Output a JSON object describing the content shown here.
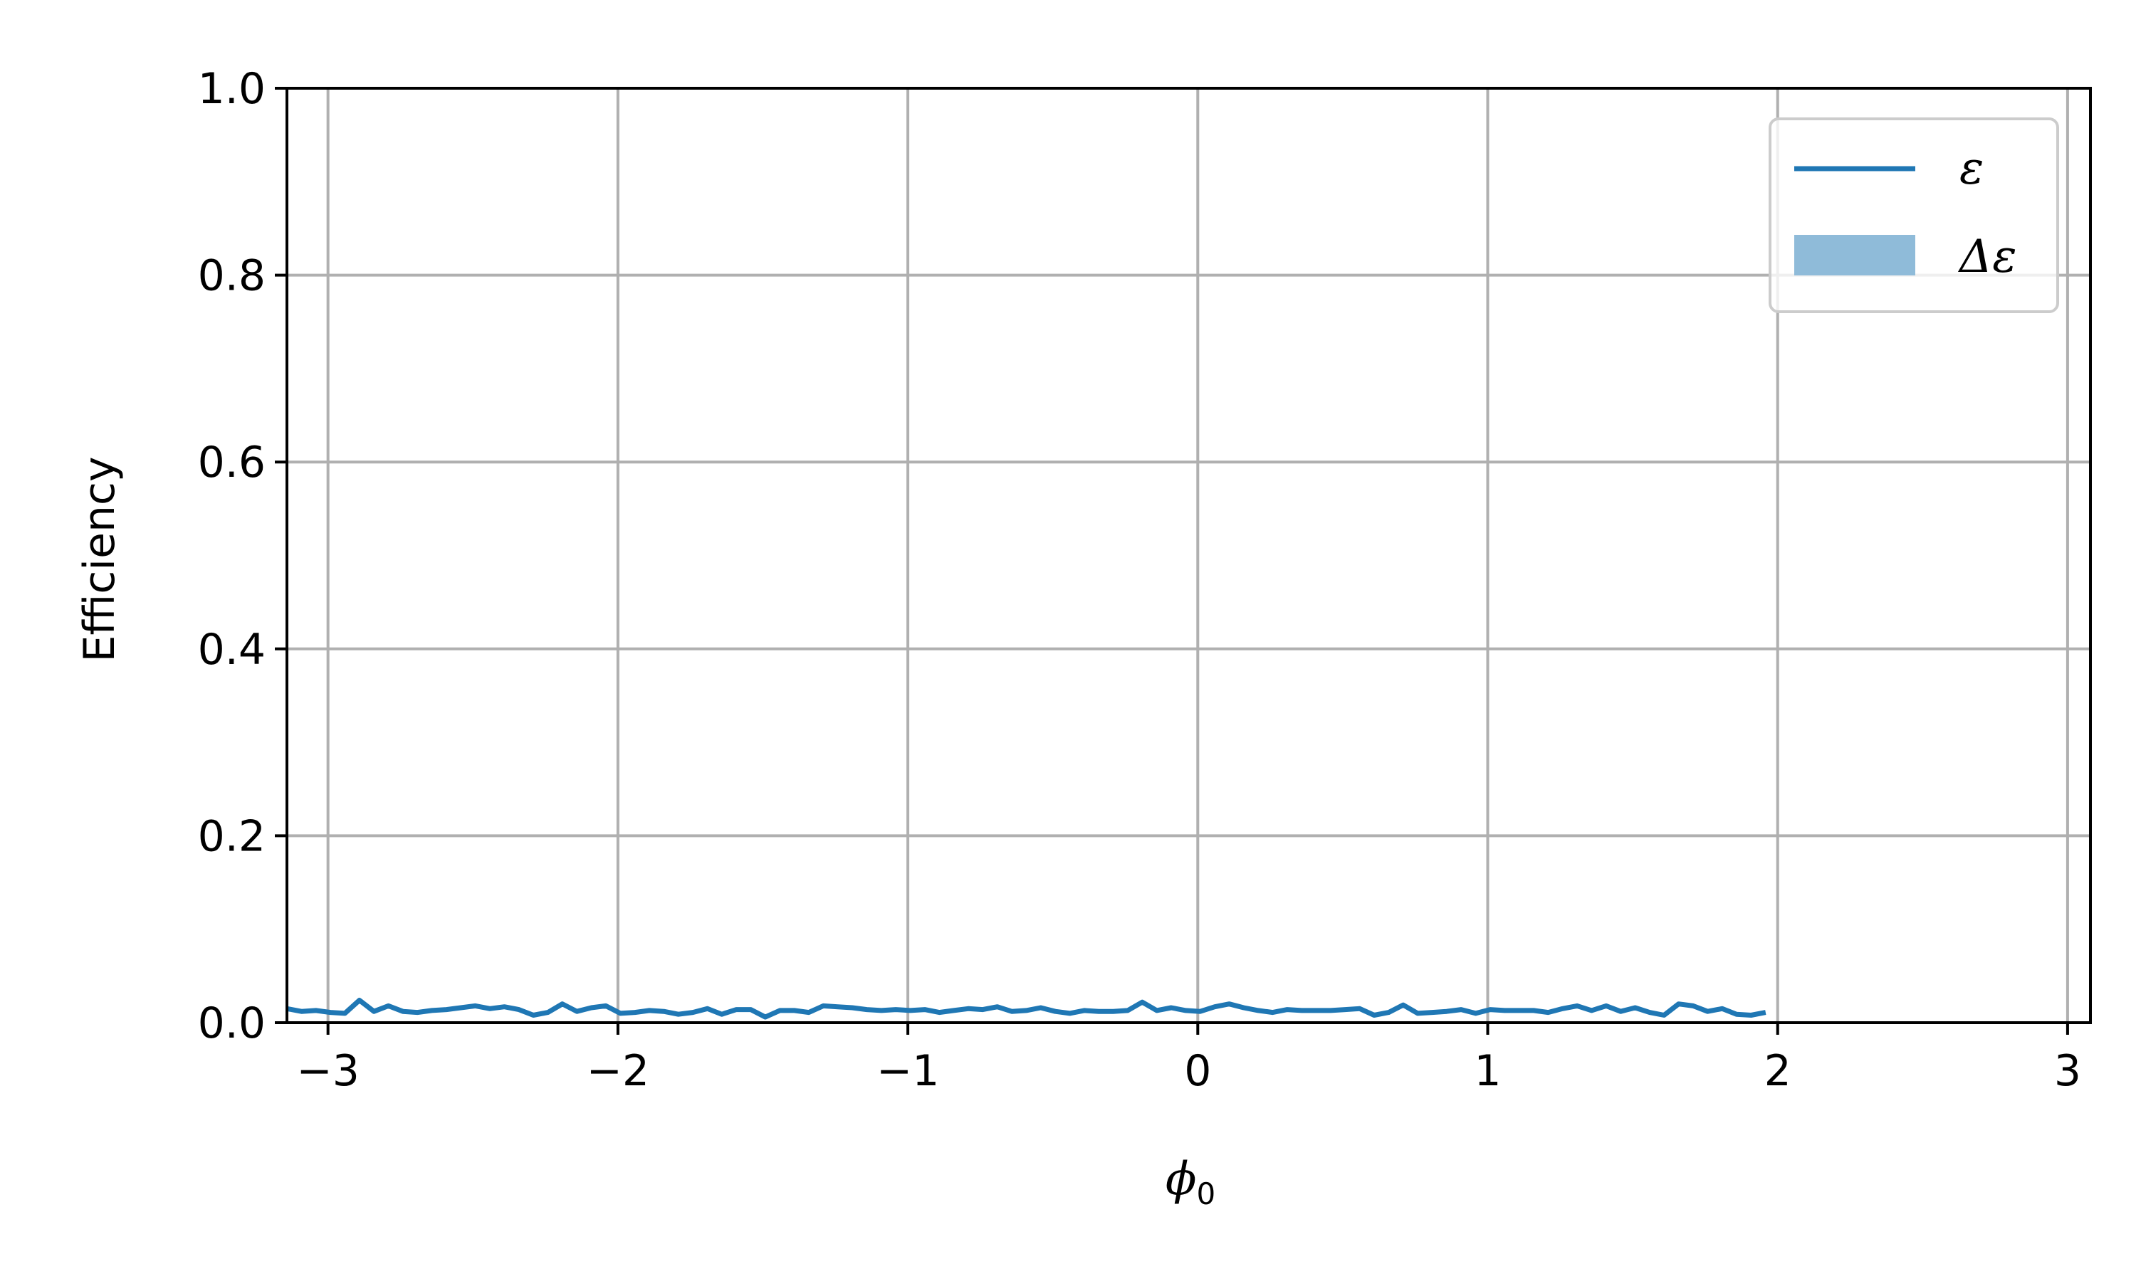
{
  "chart_data": {
    "type": "line",
    "title": "",
    "xlabel": "ϕ",
    "xlabel_sub": "0",
    "ylabel": "Efficiency",
    "xlim": [
      -3.1416,
      3.0788
    ],
    "ylim": [
      0.0,
      1.0
    ],
    "xticks": [
      -3,
      -2,
      -1,
      0,
      1,
      2,
      3
    ],
    "xtick_labels": [
      "−3",
      "−2",
      "−1",
      "0",
      "1",
      "2",
      "3"
    ],
    "yticks": [
      0.0,
      0.2,
      0.4,
      0.6,
      0.8,
      1.0
    ],
    "ytick_labels": [
      "0.0",
      "0.2",
      "0.4",
      "0.6",
      "0.8",
      "1.0"
    ],
    "grid": true,
    "legend_position": "top-right",
    "colors": {
      "line": "#1f77b4",
      "band": "#8fbbd9",
      "grid": "#b0b0b0"
    },
    "series": [
      {
        "name": "ε",
        "x_start": -3.1416,
        "x_step": 0.05,
        "values": [
          0.015,
          0.012,
          0.013,
          0.011,
          0.01,
          0.024,
          0.012,
          0.018,
          0.012,
          0.011,
          0.013,
          0.014,
          0.016,
          0.018,
          0.015,
          0.017,
          0.014,
          0.008,
          0.011,
          0.02,
          0.012,
          0.016,
          0.018,
          0.01,
          0.011,
          0.013,
          0.012,
          0.009,
          0.011,
          0.015,
          0.009,
          0.014,
          0.014,
          0.006,
          0.013,
          0.013,
          0.011,
          0.018,
          0.017,
          0.016,
          0.014,
          0.013,
          0.014,
          0.013,
          0.014,
          0.011,
          0.013,
          0.015,
          0.014,
          0.017,
          0.012,
          0.013,
          0.016,
          0.012,
          0.01,
          0.013,
          0.012,
          0.012,
          0.013,
          0.022,
          0.013,
          0.016,
          0.013,
          0.012,
          0.017,
          0.02,
          0.016,
          0.013,
          0.011,
          0.014,
          0.013,
          0.013,
          0.013,
          0.014,
          0.015,
          0.008,
          0.011,
          0.019,
          0.01,
          0.011,
          0.012,
          0.014,
          0.01,
          0.014,
          0.013,
          0.013,
          0.013,
          0.011,
          0.015,
          0.018,
          0.013,
          0.018,
          0.012,
          0.016,
          0.011,
          0.008,
          0.02,
          0.018,
          0.012,
          0.015,
          0.009,
          0.008,
          0.011
        ]
      }
    ],
    "band": {
      "name": "Δε",
      "lower": 0.0,
      "upper": 0.0
    }
  }
}
